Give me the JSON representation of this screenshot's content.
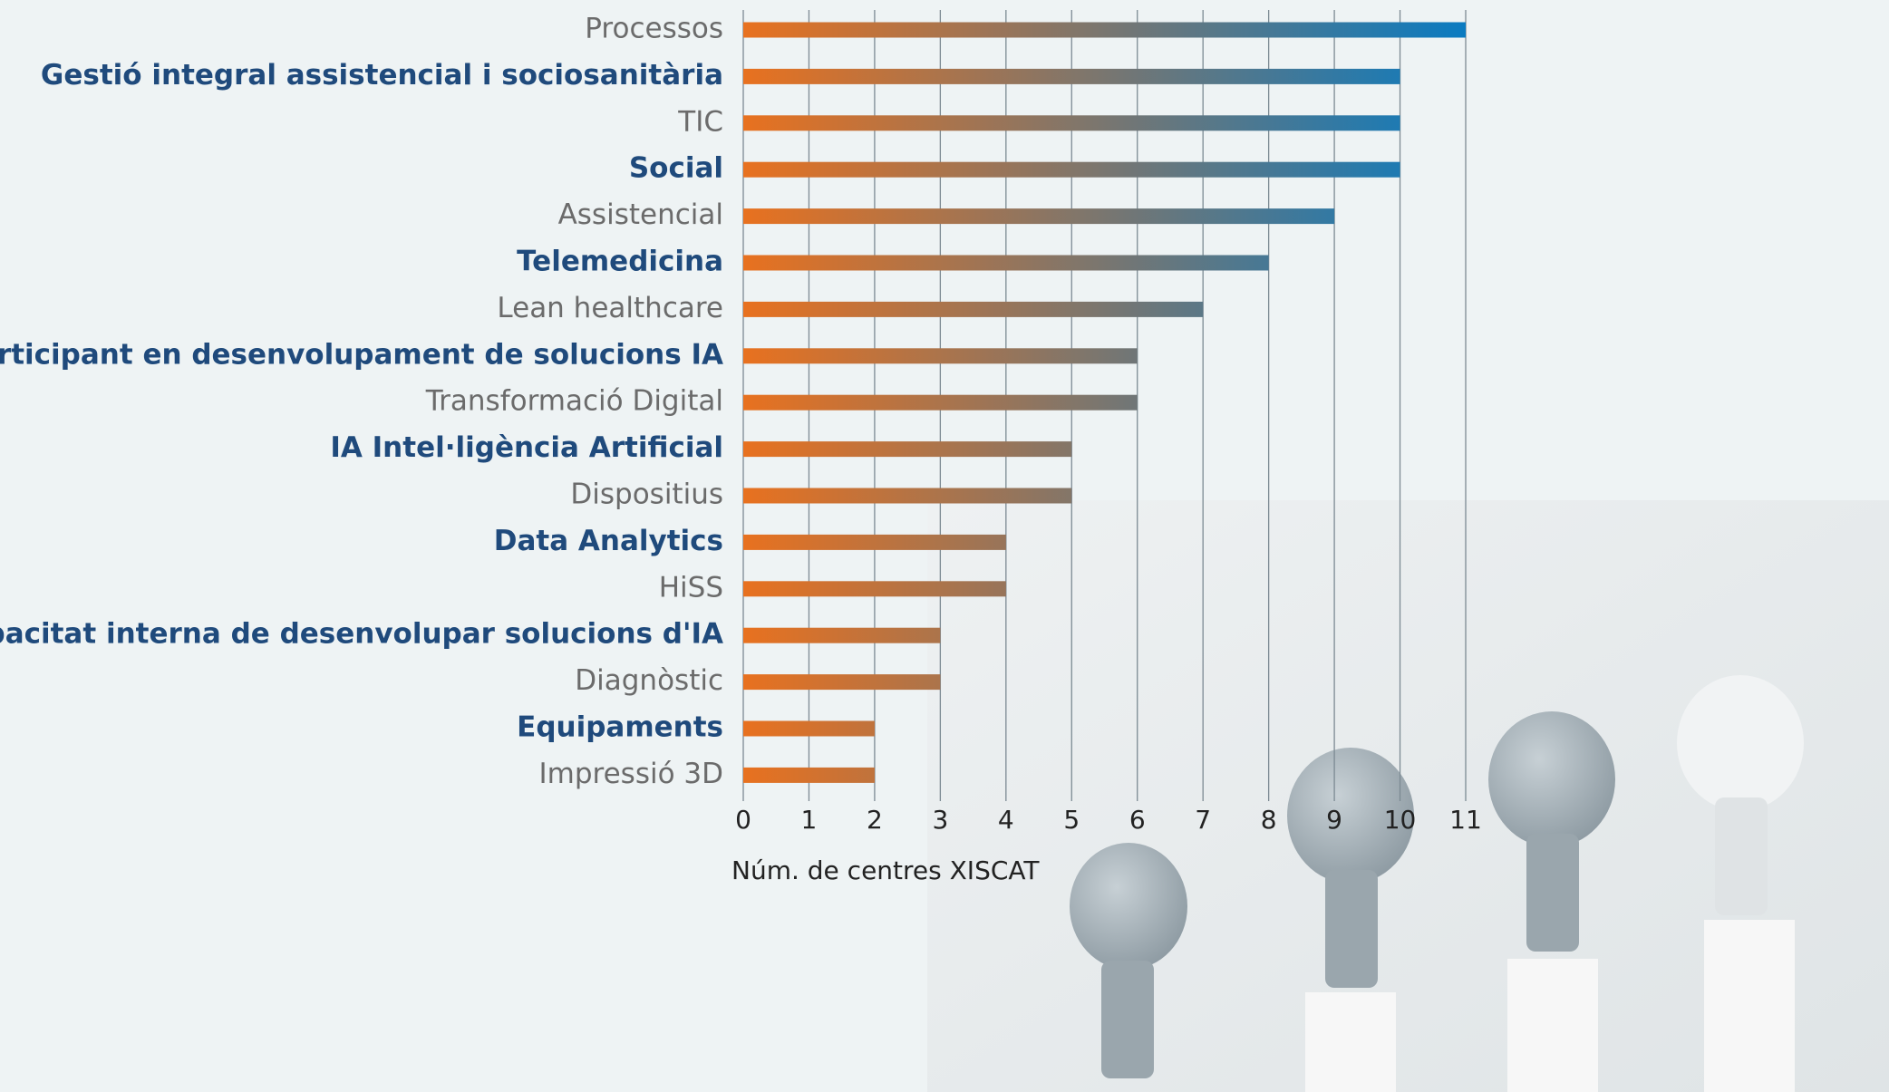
{
  "chart_data": {
    "type": "barh",
    "categories": [
      "Processos",
      "Gestió integral assistencial i sociosanitària",
      "TIC",
      "Social",
      "Assistencial",
      "Telemedicina",
      "Lean healthcare",
      "Participant en desenvolupament de solucions IA",
      "Transformació Digital",
      "IA Intel·ligència Artificial",
      "Dispositius",
      "Data Analytics",
      "HiSS",
      "Capacitat interna de desenvolupar solucions d'IA",
      "Diagnòstic",
      "Equipaments",
      "Impressió 3D"
    ],
    "values": [
      11,
      10,
      10,
      10,
      9,
      8,
      7,
      6,
      6,
      5,
      5,
      4,
      4,
      3,
      3,
      2,
      2
    ],
    "xlabel": "Núm. de centres XISCAT",
    "xlim": [
      0,
      11
    ],
    "xticks": [
      0,
      1,
      2,
      3,
      4,
      5,
      6,
      7,
      8,
      9,
      10,
      11
    ],
    "grid": true,
    "color_start": "#e8711f",
    "color_end": "#0a7bc1",
    "label_colors": [
      "#6b6b6b",
      "#1f4a7c"
    ]
  }
}
